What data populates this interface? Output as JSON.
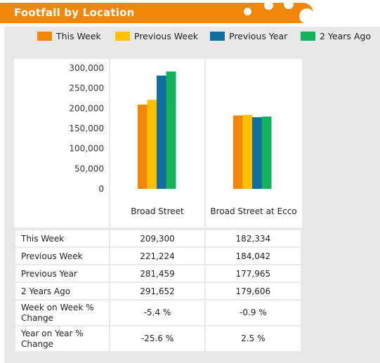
{
  "header": {
    "title": "Footfall by Location"
  },
  "legend": [
    {
      "label": "This Week",
      "color": "#f0870a"
    },
    {
      "label": "Previous Week",
      "color": "#ffc000"
    },
    {
      "label": "Previous Year",
      "color": "#0f6e9e"
    },
    {
      "label": "2 Years Ago",
      "color": "#12b35b"
    }
  ],
  "chart_data": {
    "type": "bar",
    "categories": [
      "Broad Street",
      "Broad Street at Ecco"
    ],
    "series": [
      {
        "name": "This Week",
        "color": "#f0870a",
        "values": [
          209300,
          182334
        ]
      },
      {
        "name": "Previous Week",
        "color": "#ffc000",
        "values": [
          221224,
          184042
        ]
      },
      {
        "name": "Previous Year",
        "color": "#0f6e9e",
        "values": [
          281459,
          177965
        ]
      },
      {
        "name": "2 Years Ago",
        "color": "#12b35b",
        "values": [
          291652,
          179606
        ]
      }
    ],
    "ylim": [
      0,
      300000
    ],
    "yticks": [
      "300,000",
      "250,000",
      "200,000",
      "150,000",
      "100,000",
      "50,000",
      "0"
    ],
    "legend_position": "top",
    "grid": false
  },
  "table": {
    "rows": [
      {
        "label": "This Week",
        "values": [
          "209,300",
          "182,334"
        ]
      },
      {
        "label": "Previous Week",
        "values": [
          "221,224",
          "184,042"
        ]
      },
      {
        "label": "Previous Year",
        "values": [
          "281,459",
          "177,965"
        ]
      },
      {
        "label": "2 Years Ago",
        "values": [
          "291,652",
          "179,606"
        ]
      },
      {
        "label": "Week on Week % Change",
        "values": [
          "-5.4 %",
          "-0.9 %"
        ]
      },
      {
        "label": "Year on Year % Change",
        "values": [
          "-25.6 %",
          "2.5 %"
        ]
      }
    ]
  }
}
